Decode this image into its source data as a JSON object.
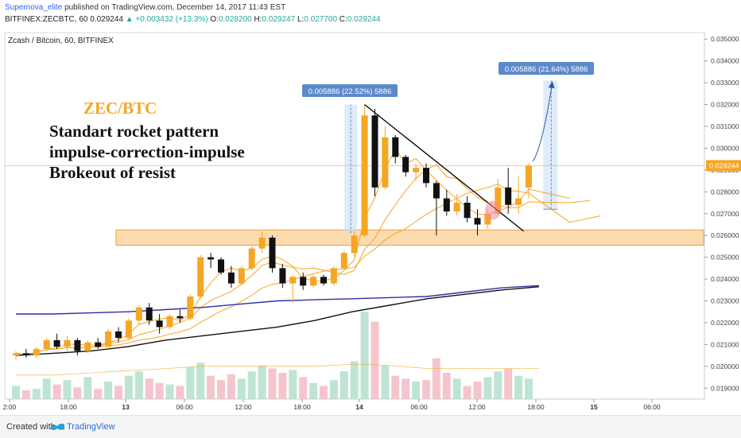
{
  "header": {
    "author": "Supernova_elite",
    "published_text": "published on TradingView.com, December 14, 2017 11:43 EST",
    "symbol_line": "BITFINEX:ZECBTC, 60",
    "last": "0.029244",
    "change": "▲ +0.003432 (+13.3%)",
    "o_label": "O:",
    "o_value": "0.028200",
    "h_label": "H:",
    "h_value": "0.029247",
    "l_label": "L:",
    "l_value": "0.027700",
    "c_label": "C:",
    "c_value": "0.029244"
  },
  "chart_data": {
    "type": "candlestick",
    "title": "Zcash / Bitcoin, 60, BITFINEX",
    "annotations": {
      "pair": "ZEC/BTC",
      "lines": [
        "Standart rocket pattern",
        "impulse-correction-impulse",
        "Brokeout of resist"
      ],
      "measure_left": "0.005886 (22.52%) 5886",
      "measure_right": "0.005886 (21.64%) 5886"
    },
    "price_label": "0.029244",
    "ylim": [
      0.0185,
      0.0353
    ],
    "y_ticks": [
      "0.035000",
      "0.034000",
      "0.033000",
      "0.032000",
      "0.031000",
      "0.030000",
      "0.029000",
      "0.028000",
      "0.027000",
      "0.026000",
      "0.025000",
      "0.024000",
      "0.023000",
      "0.022000",
      "0.021000",
      "0.020000",
      "0.019000"
    ],
    "x_ticks": [
      "2:00",
      "18:00",
      "13",
      "06:00",
      "12:00",
      "18:00",
      "14",
      "06:00",
      "12:00",
      "18:00",
      "15",
      "06:00"
    ],
    "resistance_zone": [
      0.02555,
      0.02625
    ],
    "candles": [
      {
        "o": 0.0205,
        "h": 0.0207,
        "l": 0.0203,
        "c": 0.0206
      },
      {
        "o": 0.0206,
        "h": 0.0208,
        "l": 0.0204,
        "c": 0.0205
      },
      {
        "o": 0.0205,
        "h": 0.0209,
        "l": 0.0204,
        "c": 0.0208
      },
      {
        "o": 0.0208,
        "h": 0.0213,
        "l": 0.0207,
        "c": 0.0212
      },
      {
        "o": 0.0212,
        "h": 0.0215,
        "l": 0.0208,
        "c": 0.0209
      },
      {
        "o": 0.0209,
        "h": 0.0214,
        "l": 0.0207,
        "c": 0.0212
      },
      {
        "o": 0.0212,
        "h": 0.0213,
        "l": 0.0205,
        "c": 0.0207
      },
      {
        "o": 0.0207,
        "h": 0.0212,
        "l": 0.0206,
        "c": 0.0211
      },
      {
        "o": 0.0211,
        "h": 0.0213,
        "l": 0.0208,
        "c": 0.0209
      },
      {
        "o": 0.0209,
        "h": 0.0217,
        "l": 0.0208,
        "c": 0.0216
      },
      {
        "o": 0.0216,
        "h": 0.0218,
        "l": 0.0211,
        "c": 0.0213
      },
      {
        "o": 0.0213,
        "h": 0.0222,
        "l": 0.0212,
        "c": 0.0221
      },
      {
        "o": 0.0221,
        "h": 0.0228,
        "l": 0.0219,
        "c": 0.0227
      },
      {
        "o": 0.0227,
        "h": 0.0229,
        "l": 0.0219,
        "c": 0.0221
      },
      {
        "o": 0.0221,
        "h": 0.0224,
        "l": 0.0215,
        "c": 0.0218
      },
      {
        "o": 0.0218,
        "h": 0.0224,
        "l": 0.0217,
        "c": 0.0223
      },
      {
        "o": 0.0223,
        "h": 0.0226,
        "l": 0.022,
        "c": 0.0222
      },
      {
        "o": 0.0222,
        "h": 0.0233,
        "l": 0.0221,
        "c": 0.0232
      },
      {
        "o": 0.0232,
        "h": 0.0251,
        "l": 0.0231,
        "c": 0.025
      },
      {
        "o": 0.025,
        "h": 0.0252,
        "l": 0.0245,
        "c": 0.0249
      },
      {
        "o": 0.0249,
        "h": 0.025,
        "l": 0.0242,
        "c": 0.0243
      },
      {
        "o": 0.0243,
        "h": 0.0246,
        "l": 0.0236,
        "c": 0.0238
      },
      {
        "o": 0.0238,
        "h": 0.0246,
        "l": 0.0237,
        "c": 0.0245
      },
      {
        "o": 0.0245,
        "h": 0.0255,
        "l": 0.0244,
        "c": 0.0254
      },
      {
        "o": 0.0254,
        "h": 0.0262,
        "l": 0.0252,
        "c": 0.0259
      },
      {
        "o": 0.0259,
        "h": 0.026,
        "l": 0.0243,
        "c": 0.0245
      },
      {
        "o": 0.0245,
        "h": 0.0247,
        "l": 0.0236,
        "c": 0.0238
      },
      {
        "o": 0.0238,
        "h": 0.0242,
        "l": 0.0229,
        "c": 0.0241
      },
      {
        "o": 0.0241,
        "h": 0.0243,
        "l": 0.0235,
        "c": 0.0237
      },
      {
        "o": 0.0237,
        "h": 0.0242,
        "l": 0.0236,
        "c": 0.0241
      },
      {
        "o": 0.0241,
        "h": 0.0242,
        "l": 0.0237,
        "c": 0.0238
      },
      {
        "o": 0.0238,
        "h": 0.0246,
        "l": 0.0237,
        "c": 0.0245
      },
      {
        "o": 0.0245,
        "h": 0.0253,
        "l": 0.0244,
        "c": 0.0252
      },
      {
        "o": 0.0252,
        "h": 0.0262,
        "l": 0.025,
        "c": 0.026
      },
      {
        "o": 0.026,
        "h": 0.032,
        "l": 0.0259,
        "c": 0.0315
      },
      {
        "o": 0.0315,
        "h": 0.0318,
        "l": 0.0278,
        "c": 0.0282
      },
      {
        "o": 0.0282,
        "h": 0.031,
        "l": 0.0281,
        "c": 0.0305
      },
      {
        "o": 0.0305,
        "h": 0.0306,
        "l": 0.0293,
        "c": 0.0296
      },
      {
        "o": 0.0296,
        "h": 0.0297,
        "l": 0.0287,
        "c": 0.0289
      },
      {
        "o": 0.0289,
        "h": 0.0293,
        "l": 0.0285,
        "c": 0.0291
      },
      {
        "o": 0.0291,
        "h": 0.0293,
        "l": 0.0282,
        "c": 0.0284
      },
      {
        "o": 0.0284,
        "h": 0.0285,
        "l": 0.026,
        "c": 0.0277
      },
      {
        "o": 0.0277,
        "h": 0.0281,
        "l": 0.0269,
        "c": 0.0271
      },
      {
        "o": 0.0271,
        "h": 0.0279,
        "l": 0.0269,
        "c": 0.0275
      },
      {
        "o": 0.0275,
        "h": 0.0278,
        "l": 0.0266,
        "c": 0.0268
      },
      {
        "o": 0.0268,
        "h": 0.0272,
        "l": 0.026,
        "c": 0.0265
      },
      {
        "o": 0.0265,
        "h": 0.0272,
        "l": 0.0263,
        "c": 0.027
      },
      {
        "o": 0.027,
        "h": 0.0286,
        "l": 0.0269,
        "c": 0.0282
      },
      {
        "o": 0.0282,
        "h": 0.0291,
        "l": 0.027,
        "c": 0.0274
      },
      {
        "o": 0.0274,
        "h": 0.0287,
        "l": 0.027,
        "c": 0.0277
      },
      {
        "o": 0.0282,
        "h": 0.0293,
        "l": 0.0277,
        "c": 0.0292
      }
    ],
    "volumes": [
      0.9,
      0.6,
      0.7,
      1.4,
      1.0,
      1.3,
      0.8,
      1.5,
      0.7,
      1.2,
      0.9,
      1.6,
      1.9,
      1.4,
      1.1,
      1.0,
      0.9,
      2.2,
      2.5,
      1.6,
      1.3,
      1.7,
      1.4,
      1.9,
      2.3,
      2.1,
      1.8,
      2.0,
      1.5,
      1.1,
      0.9,
      1.3,
      1.9,
      2.6,
      6.0,
      5.3,
      2.3,
      1.6,
      1.4,
      1.2,
      1.3,
      2.8,
      1.8,
      1.4,
      0.9,
      1.2,
      1.5,
      1.9,
      2.1,
      1.6,
      1.4
    ]
  },
  "footer": {
    "created": "Created with",
    "brand": "TradingView"
  }
}
